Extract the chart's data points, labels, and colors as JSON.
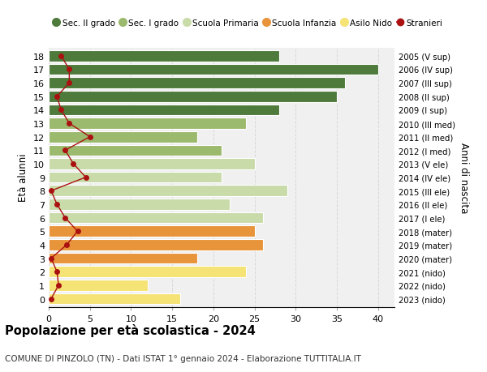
{
  "ages": [
    0,
    1,
    2,
    3,
    4,
    5,
    6,
    7,
    8,
    9,
    10,
    11,
    12,
    13,
    14,
    15,
    16,
    17,
    18
  ],
  "bar_values": [
    16,
    12,
    24,
    18,
    26,
    25,
    26,
    22,
    29,
    21,
    25,
    21,
    18,
    24,
    28,
    35,
    36,
    40,
    28
  ],
  "bar_colors": [
    "#f5e375",
    "#f5e375",
    "#f5e375",
    "#e8943a",
    "#e8943a",
    "#e8943a",
    "#c8dba8",
    "#c8dba8",
    "#c8dba8",
    "#c8dba8",
    "#c8dba8",
    "#9cba6e",
    "#9cba6e",
    "#9cba6e",
    "#4e7a3c",
    "#4e7a3c",
    "#4e7a3c",
    "#4e7a3c",
    "#4e7a3c"
  ],
  "stranieri_values": [
    0.3,
    1.2,
    1.0,
    0.3,
    2.2,
    3.5,
    2.0,
    1.0,
    0.3,
    4.5,
    3.0,
    2.0,
    5.0,
    2.5,
    1.5,
    1.0,
    2.5,
    2.5,
    1.5
  ],
  "right_labels": [
    "2023 (nido)",
    "2022 (nido)",
    "2021 (nido)",
    "2020 (mater)",
    "2019 (mater)",
    "2018 (mater)",
    "2017 (I ele)",
    "2016 (II ele)",
    "2015 (III ele)",
    "2014 (IV ele)",
    "2013 (V ele)",
    "2012 (I med)",
    "2011 (II med)",
    "2010 (III med)",
    "2009 (I sup)",
    "2008 (II sup)",
    "2007 (III sup)",
    "2006 (IV sup)",
    "2005 (V sup)"
  ],
  "xlabel_ticks": [
    0,
    5,
    10,
    15,
    20,
    25,
    30,
    35,
    40
  ],
  "title": "Popolazione per età scolastica - 2024",
  "subtitle": "COMUNE DI PINZOLO (TN) - Dati ISTAT 1° gennaio 2024 - Elaborazione TUTTITALIA.IT",
  "ylabel": "Età alunni",
  "right_ylabel": "Anni di nascita",
  "legend_items": [
    {
      "label": "Sec. II grado",
      "color": "#4e7a3c"
    },
    {
      "label": "Sec. I grado",
      "color": "#9cba6e"
    },
    {
      "label": "Scuola Primaria",
      "color": "#c8dba8"
    },
    {
      "label": "Scuola Infanzia",
      "color": "#e8943a"
    },
    {
      "label": "Asilo Nido",
      "color": "#f5e375"
    },
    {
      "label": "Stranieri",
      "color": "#aa1111"
    }
  ],
  "bg_color": "#ffffff",
  "plot_bg_color": "#f0f0f0",
  "grid_color": "#d8d8d8"
}
